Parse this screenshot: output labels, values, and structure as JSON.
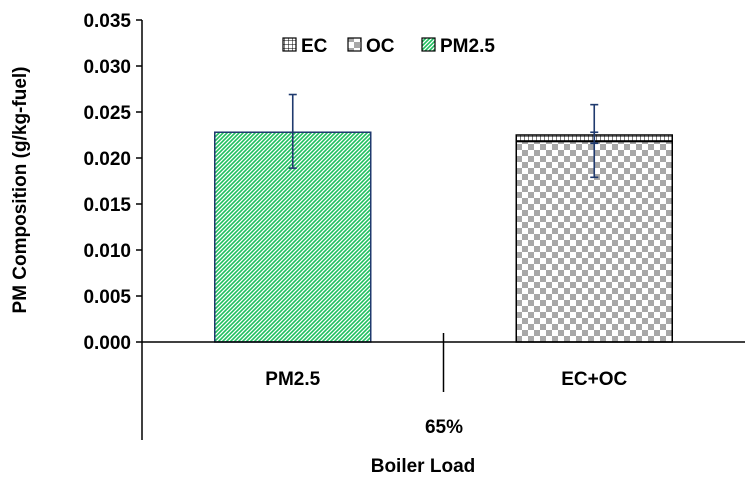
{
  "chart_data": {
    "type": "bar",
    "stacked": true,
    "ylabel": "PM Composition (g/kg-fuel)",
    "xlabel": "Boiler Load",
    "group_label": "65%",
    "categories": [
      "PM2.5",
      "EC+OC"
    ],
    "ylim": [
      0,
      0.035
    ],
    "yticks": [
      "0.000",
      "0.005",
      "0.010",
      "0.015",
      "0.020",
      "0.025",
      "0.030",
      "0.035"
    ],
    "series": [
      {
        "name": "EC",
        "values": [
          0,
          0.0007
        ],
        "pattern": "grid",
        "color": "#000000"
      },
      {
        "name": "OC",
        "values": [
          0,
          0.0218
        ],
        "pattern": "checker",
        "color": "#9e9e9e"
      },
      {
        "name": "PM2.5",
        "values": [
          0.0228,
          0
        ],
        "pattern": "diagonal",
        "color": "#1fbf5f"
      }
    ],
    "legend_order": [
      "EC",
      "OC",
      "PM2.5"
    ],
    "legend_position": "top-center",
    "error_bars": [
      {
        "category": "PM2.5",
        "center": 0.0228,
        "low": 0.0189,
        "high": 0.0269
      },
      {
        "category": "EC+OC",
        "center": 0.0225,
        "low": 0.0179,
        "high": 0.0258
      },
      {
        "category": "EC+OC",
        "center": 0.0225,
        "low": 0.0216,
        "high": 0.0228
      }
    ],
    "grid": false,
    "colors": {
      "error_bar": "#1f3a6e",
      "bar_outline": "#1f3a6e",
      "stack_outline": "#000000"
    }
  }
}
